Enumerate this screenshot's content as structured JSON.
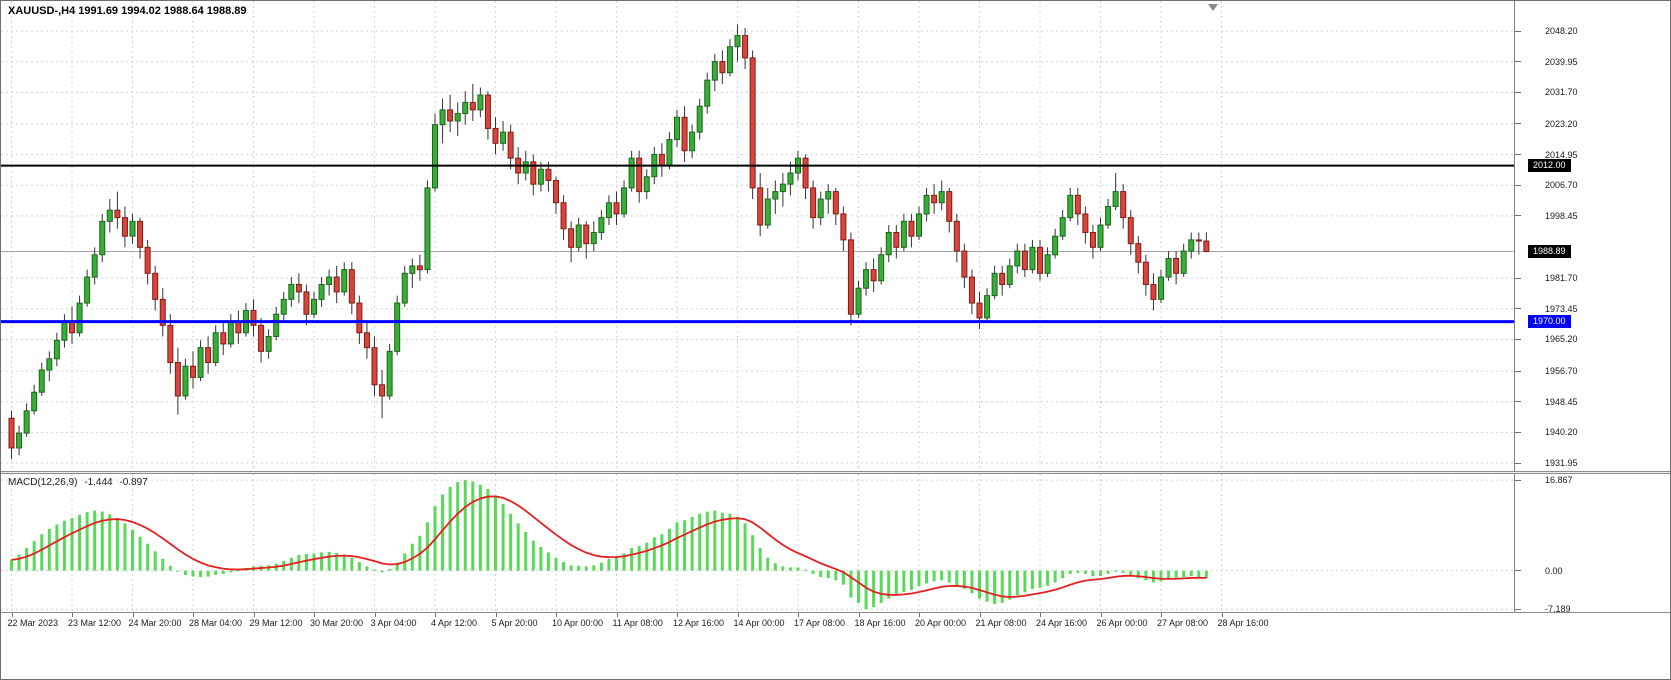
{
  "header": {
    "title": "XAUUSD-,H4 1991.69 1994.02 1988.64 1988.89"
  },
  "colors": {
    "background": "#ffffff",
    "bull": "#38ad38",
    "bull_border": "#1c661c",
    "bear": "#d9453c",
    "bear_border": "#7e1d16",
    "wick": "#333333",
    "grid": "#d4d4d4",
    "macd_histogram": "#58da58",
    "macd_signal": "#e32020",
    "resistance_line": "#000000",
    "support_line": "#0000ff",
    "current_price_line": "#a6a6a6",
    "axis_text": "#1a1a1a",
    "tag_text": "#ffffff"
  },
  "chart_data": {
    "type": "candlestick",
    "title": "XAUUSD-,H4",
    "symbol": "XAUUSD-",
    "timeframe": "H4",
    "current_ohlc": {
      "open": "1991.69",
      "high": "1994.02",
      "low": "1988.64",
      "close": "1988.89"
    },
    "price_ylim": [
      1929.8,
      2056.3
    ],
    "price_ticks": [
      "2048.20",
      "2039.95",
      "2031.70",
      "2023.20",
      "2014.95",
      "2006.70",
      "1998.45",
      "1981.70",
      "1973.45",
      "1965.20",
      "1956.70",
      "1948.45",
      "1940.20",
      "1931.95"
    ],
    "price_levels": [
      {
        "role": "resistance",
        "label": "2012.00",
        "value": 2012.0,
        "line_color": "#000000",
        "line_width": 2,
        "label_bg": "#000000"
      },
      {
        "role": "current-price",
        "label": "1988.89",
        "value": 1988.89,
        "line_color": "#a6a6a6",
        "line_width": 1,
        "label_bg": "#000000"
      },
      {
        "role": "support",
        "label": "1970.00",
        "value": 1970.0,
        "line_color": "#0000ff",
        "line_width": 3,
        "label_bg": "#0000ff"
      }
    ],
    "candles_per_label": 8,
    "time_labels": [
      "22 Mar 2023",
      "23 Mar 12:00",
      "24 Mar 20:00",
      "28 Mar 04:00",
      "29 Mar 12:00",
      "30 Mar 20:00",
      "3 Apr 04:00",
      "4 Apr 12:00",
      "5 Apr 20:00",
      "10 Apr 00:00",
      "11 Apr 08:00",
      "12 Apr 16:00",
      "14 Apr 00:00",
      "17 Apr 08:00",
      "18 Apr 16:00",
      "20 Apr 00:00",
      "21 Apr 08:00",
      "24 Apr 16:00",
      "26 Apr 00:00",
      "27 Apr 08:00",
      "28 Apr 16:00"
    ],
    "candles": [
      [
        1944,
        1946,
        1933,
        1936
      ],
      [
        1936,
        1942,
        1934,
        1940
      ],
      [
        1940,
        1948,
        1939,
        1946
      ],
      [
        1946,
        1953,
        1945,
        1951
      ],
      [
        1951,
        1959,
        1950,
        1957
      ],
      [
        1957,
        1962,
        1954,
        1960
      ],
      [
        1960,
        1967,
        1958,
        1965
      ],
      [
        1965,
        1972,
        1963,
        1970
      ],
      [
        1970,
        1974,
        1964,
        1967
      ],
      [
        1967,
        1977,
        1966,
        1975
      ],
      [
        1975,
        1984,
        1974,
        1982
      ],
      [
        1982,
        1990,
        1980,
        1988
      ],
      [
        1988,
        1999,
        1986,
        1997
      ],
      [
        1997,
        2003,
        1994,
        2000
      ],
      [
        2000,
        2005,
        1995,
        1998
      ],
      [
        1998,
        2001,
        1990,
        1993
      ],
      [
        1993,
        1999,
        1991,
        1997
      ],
      [
        1997,
        1998,
        1987,
        1990
      ],
      [
        1990,
        1992,
        1980,
        1983
      ],
      [
        1983,
        1985,
        1973,
        1976
      ],
      [
        1976,
        1979,
        1966,
        1969
      ],
      [
        1969,
        1972,
        1956,
        1959
      ],
      [
        1959,
        1963,
        1945,
        1950
      ],
      [
        1950,
        1960,
        1949,
        1958
      ],
      [
        1958,
        1962,
        1952,
        1955
      ],
      [
        1955,
        1965,
        1954,
        1963
      ],
      [
        1963,
        1966,
        1956,
        1959
      ],
      [
        1959,
        1969,
        1958,
        1967
      ],
      [
        1967,
        1970,
        1961,
        1964
      ],
      [
        1964,
        1972,
        1963,
        1970
      ],
      [
        1970,
        1973,
        1964,
        1967
      ],
      [
        1967,
        1975,
        1966,
        1973
      ],
      [
        1973,
        1976,
        1966,
        1969
      ],
      [
        1969,
        1971,
        1959,
        1962
      ],
      [
        1962,
        1968,
        1960,
        1966
      ],
      [
        1966,
        1974,
        1965,
        1972
      ],
      [
        1972,
        1978,
        1970,
        1976
      ],
      [
        1976,
        1982,
        1974,
        1980
      ],
      [
        1980,
        1983,
        1975,
        1978
      ],
      [
        1978,
        1980,
        1969,
        1972
      ],
      [
        1972,
        1978,
        1971,
        1976
      ],
      [
        1976,
        1982,
        1974,
        1980
      ],
      [
        1980,
        1984,
        1977,
        1982
      ],
      [
        1982,
        1985,
        1975,
        1978
      ],
      [
        1978,
        1986,
        1977,
        1984
      ],
      [
        1984,
        1986,
        1972,
        1975
      ],
      [
        1975,
        1977,
        1964,
        1967
      ],
      [
        1967,
        1970,
        1960,
        1963
      ],
      [
        1963,
        1966,
        1950,
        1953
      ],
      [
        1953,
        1957,
        1944,
        1950
      ],
      [
        1950,
        1964,
        1949,
        1962
      ],
      [
        1962,
        1977,
        1961,
        1975
      ],
      [
        1975,
        1985,
        1974,
        1983
      ],
      [
        1983,
        1987,
        1979,
        1985
      ],
      [
        1985,
        1988,
        1981,
        1984
      ],
      [
        1984,
        2008,
        1983,
        2006
      ],
      [
        2006,
        2026,
        2005,
        2023
      ],
      [
        2023,
        2030,
        2018,
        2027
      ],
      [
        2027,
        2031,
        2021,
        2024
      ],
      [
        2024,
        2029,
        2020,
        2026
      ],
      [
        2026,
        2032,
        2023,
        2029
      ],
      [
        2029,
        2034,
        2024,
        2027
      ],
      [
        2027,
        2033,
        2025,
        2031
      ],
      [
        2031,
        2032,
        2019,
        2022
      ],
      [
        2022,
        2025,
        2015,
        2018
      ],
      [
        2018,
        2024,
        2016,
        2021
      ],
      [
        2021,
        2023,
        2011,
        2014
      ],
      [
        2014,
        2017,
        2007,
        2010
      ],
      [
        2010,
        2016,
        2008,
        2013
      ],
      [
        2013,
        2015,
        2004,
        2007
      ],
      [
        2007,
        2013,
        2005,
        2011
      ],
      [
        2011,
        2013,
        2005,
        2008
      ],
      [
        2008,
        2009,
        1999,
        2002
      ],
      [
        2002,
        2004,
        1992,
        1995
      ],
      [
        1995,
        1997,
        1986,
        1990
      ],
      [
        1990,
        1998,
        1989,
        1996
      ],
      [
        1996,
        1997,
        1987,
        1991
      ],
      [
        1991,
        1997,
        1989,
        1994
      ],
      [
        1994,
        2000,
        1992,
        1998
      ],
      [
        1998,
        2004,
        1996,
        2002
      ],
      [
        2002,
        2005,
        1996,
        1999
      ],
      [
        1999,
        2008,
        1998,
        2006
      ],
      [
        2006,
        2016,
        2005,
        2014
      ],
      [
        2014,
        2016,
        2002,
        2005
      ],
      [
        2005,
        2011,
        2003,
        2009
      ],
      [
        2009,
        2017,
        2007,
        2015
      ],
      [
        2015,
        2018,
        2009,
        2012
      ],
      [
        2012,
        2021,
        2011,
        2019
      ],
      [
        2019,
        2027,
        2017,
        2025
      ],
      [
        2025,
        2028,
        2013,
        2016
      ],
      [
        2016,
        2023,
        2014,
        2021
      ],
      [
        2021,
        2030,
        2019,
        2028
      ],
      [
        2028,
        2037,
        2026,
        2035
      ],
      [
        2035,
        2042,
        2032,
        2040
      ],
      [
        2040,
        2043,
        2034,
        2037
      ],
      [
        2037,
        2046,
        2036,
        2044
      ],
      [
        2044,
        2050,
        2040,
        2047
      ],
      [
        2047,
        2049,
        2038,
        2041
      ],
      [
        2041,
        2043,
        2003,
        2006
      ],
      [
        2006,
        2010,
        1993,
        1996
      ],
      [
        1996,
        2006,
        1995,
        2003
      ],
      [
        2003,
        2008,
        1999,
        2005
      ],
      [
        2005,
        2010,
        2001,
        2007
      ],
      [
        2007,
        2013,
        2004,
        2010
      ],
      [
        2010,
        2016,
        2008,
        2014
      ],
      [
        2014,
        2015,
        2003,
        2006
      ],
      [
        2006,
        2008,
        1995,
        1998
      ],
      [
        1998,
        2005,
        1996,
        2003
      ],
      [
        2003,
        2007,
        1999,
        2005
      ],
      [
        2005,
        2006,
        1996,
        1999
      ],
      [
        1999,
        2001,
        1989,
        1992
      ],
      [
        1992,
        1994,
        1969,
        1972
      ],
      [
        1972,
        1981,
        1971,
        1979
      ],
      [
        1979,
        1986,
        1977,
        1984
      ],
      [
        1984,
        1987,
        1978,
        1981
      ],
      [
        1981,
        1990,
        1980,
        1988
      ],
      [
        1988,
        1996,
        1986,
        1994
      ],
      [
        1994,
        1996,
        1987,
        1990
      ],
      [
        1990,
        1999,
        1989,
        1997
      ],
      [
        1997,
        1999,
        1990,
        1993
      ],
      [
        1993,
        2001,
        1992,
        1999
      ],
      [
        1999,
        2006,
        1997,
        2004
      ],
      [
        2004,
        2007,
        1999,
        2002
      ],
      [
        2002,
        2008,
        2000,
        2005
      ],
      [
        2005,
        2006,
        1994,
        1997
      ],
      [
        1997,
        1999,
        1986,
        1989
      ],
      [
        1989,
        1991,
        1979,
        1982
      ],
      [
        1982,
        1984,
        1972,
        1975
      ],
      [
        1975,
        1978,
        1968,
        1971
      ],
      [
        1971,
        1979,
        1970,
        1977
      ],
      [
        1977,
        1985,
        1976,
        1983
      ],
      [
        1983,
        1985,
        1977,
        1980
      ],
      [
        1980,
        1987,
        1979,
        1985
      ],
      [
        1985,
        1991,
        1983,
        1989
      ],
      [
        1989,
        1991,
        1982,
        1984
      ],
      [
        1984,
        1992,
        1983,
        1990
      ],
      [
        1990,
        1992,
        1981,
        1983
      ],
      [
        1983,
        1990,
        1982,
        1988
      ],
      [
        1988,
        1995,
        1987,
        1993
      ],
      [
        1993,
        2000,
        1992,
        1998
      ],
      [
        1998,
        2006,
        1997,
        2004
      ],
      [
        2004,
        2006,
        1996,
        1999
      ],
      [
        1999,
        2001,
        1991,
        1994
      ],
      [
        1994,
        1996,
        1987,
        1990
      ],
      [
        1990,
        1998,
        1989,
        1996
      ],
      [
        1996,
        2003,
        1995,
        2001
      ],
      [
        2001,
        2010,
        2000,
        2005
      ],
      [
        2005,
        2007,
        1995,
        1998
      ],
      [
        1998,
        2000,
        1988,
        1991
      ],
      [
        1991,
        1993,
        1983,
        1986
      ],
      [
        1986,
        1988,
        1977,
        1980
      ],
      [
        1980,
        1983,
        1973,
        1976
      ],
      [
        1976,
        1984,
        1975,
        1982
      ],
      [
        1982,
        1989,
        1981,
        1987
      ],
      [
        1987,
        1989,
        1980,
        1983
      ],
      [
        1983,
        1991,
        1982,
        1989
      ],
      [
        1989,
        1994,
        1987,
        1992
      ],
      [
        1992,
        1994,
        1988,
        1991.69
      ],
      [
        1991.69,
        1994.02,
        1988.64,
        1988.89
      ]
    ],
    "macd": {
      "name": "MACD(12,26,9)",
      "value_text": "-1.444",
      "signal_text": "-0.897",
      "ylim": [
        -7.7,
        18
      ],
      "ticks": [
        "16.867",
        "0.00",
        "-7.189"
      ],
      "signal_ema_period": 9,
      "values": [
        2.0,
        3.0,
        4.2,
        5.5,
        6.8,
        7.8,
        8.6,
        9.3,
        9.8,
        10.4,
        10.9,
        11.2,
        11.0,
        10.5,
        9.8,
        8.8,
        7.6,
        6.3,
        5.0,
        3.6,
        2.2,
        0.9,
        -0.2,
        -0.8,
        -1.1,
        -1.2,
        -1.1,
        -0.8,
        -0.6,
        -0.3,
        0.1,
        0.5,
        0.8,
        0.9,
        1.0,
        1.3,
        1.8,
        2.4,
        2.9,
        3.1,
        3.2,
        3.4,
        3.5,
        3.3,
        3.0,
        2.4,
        1.6,
        0.8,
        0.2,
        -0.3,
        0.3,
        1.5,
        3.2,
        5.0,
        6.5,
        9.0,
        12.0,
        14.2,
        15.6,
        16.5,
        16.867,
        16.6,
        16.0,
        15.2,
        14.0,
        12.4,
        10.6,
        8.8,
        7.2,
        5.6,
        4.4,
        3.4,
        2.4,
        1.6,
        1.0,
        0.9,
        0.8,
        1.0,
        1.5,
        2.2,
        2.6,
        3.2,
        4.2,
        4.6,
        5.2,
        6.2,
        6.8,
        7.8,
        9.0,
        9.4,
        10.0,
        10.6,
        11.0,
        11.2,
        10.8,
        10.6,
        10.0,
        8.8,
        6.6,
        4.2,
        2.4,
        1.4,
        0.8,
        0.6,
        0.6,
        0.2,
        -0.6,
        -1.2,
        -1.4,
        -1.8,
        -2.6,
        -5.0,
        -6.0,
        -7.189,
        -6.8,
        -6.0,
        -5.2,
        -4.6,
        -4.0,
        -3.6,
        -2.9,
        -2.4,
        -2.0,
        -1.8,
        -2.2,
        -2.8,
        -3.4,
        -4.2,
        -5.2,
        -5.8,
        -6.2,
        -6.0,
        -5.4,
        -4.6,
        -4.0,
        -3.4,
        -3.2,
        -2.8,
        -2.2,
        -1.4,
        -0.6,
        -0.4,
        -0.6,
        -1.0,
        -1.0,
        -0.6,
        -0.2,
        -0.4,
        -0.8,
        -1.4,
        -1.8,
        -2.2,
        -2.0,
        -1.6,
        -1.4,
        -1.2,
        -1.0,
        -1.2,
        -1.444
      ]
    }
  }
}
